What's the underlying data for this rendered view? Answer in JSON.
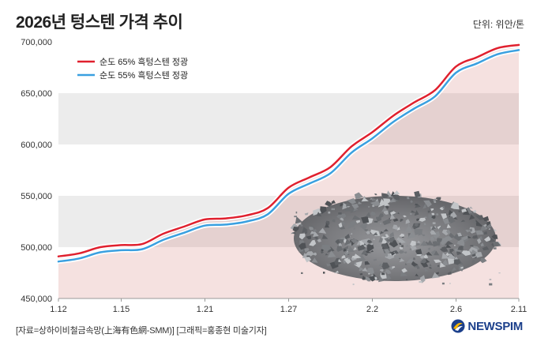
{
  "title": "2026년 텅스텐 가격 추이",
  "unit": "단위: 위안/톤",
  "source": "[자료=상하이비철금속망(上海有色網-SMM)] [그래픽=홍종현 미술기자]",
  "logo_text": "NEWSPIM",
  "chart_data": {
    "type": "line",
    "title": "2026년 텅스텐 가격 추이",
    "ylabel": "단위: 위안/톤",
    "ylim": [
      450000,
      700000
    ],
    "yticks": [
      450000,
      500000,
      550000,
      600000,
      650000,
      700000
    ],
    "ytick_labels": [
      "450,000",
      "500,000",
      "550,000",
      "600,000",
      "650,000",
      "700,000"
    ],
    "x": [
      "1.12",
      "1.13",
      "1.14",
      "1.15",
      "1.16",
      "1.19",
      "1.20",
      "1.21",
      "1.22",
      "1.23",
      "1.26",
      "1.27",
      "1.28",
      "1.29",
      "1.30",
      "2.2",
      "2.3",
      "2.4",
      "2.5",
      "2.6",
      "2.9",
      "2.10",
      "2.11"
    ],
    "xtick_labels": [
      "1.12",
      "1.15",
      "1.21",
      "1.27",
      "2.2",
      "2.6",
      "2.11"
    ],
    "legend_position": "top-left",
    "series": [
      {
        "name": "순도 65% 흑텅스텐 정광",
        "color": "#e0202e",
        "values": [
          491000,
          494000,
          500000,
          502000,
          503000,
          513000,
          520000,
          527000,
          528000,
          531000,
          538000,
          558000,
          568000,
          578000,
          598000,
          612000,
          628000,
          641000,
          653000,
          676000,
          685000,
          694000,
          697000
        ]
      },
      {
        "name": "순도 55% 흑텅스텐 정광",
        "color": "#3aa0e0",
        "values": [
          486000,
          489000,
          495000,
          497000,
          498000,
          507000,
          514000,
          521000,
          522000,
          525000,
          532000,
          552000,
          562000,
          572000,
          592000,
          606000,
          622000,
          635000,
          647000,
          670000,
          679000,
          688000,
          692000
        ]
      }
    ]
  }
}
